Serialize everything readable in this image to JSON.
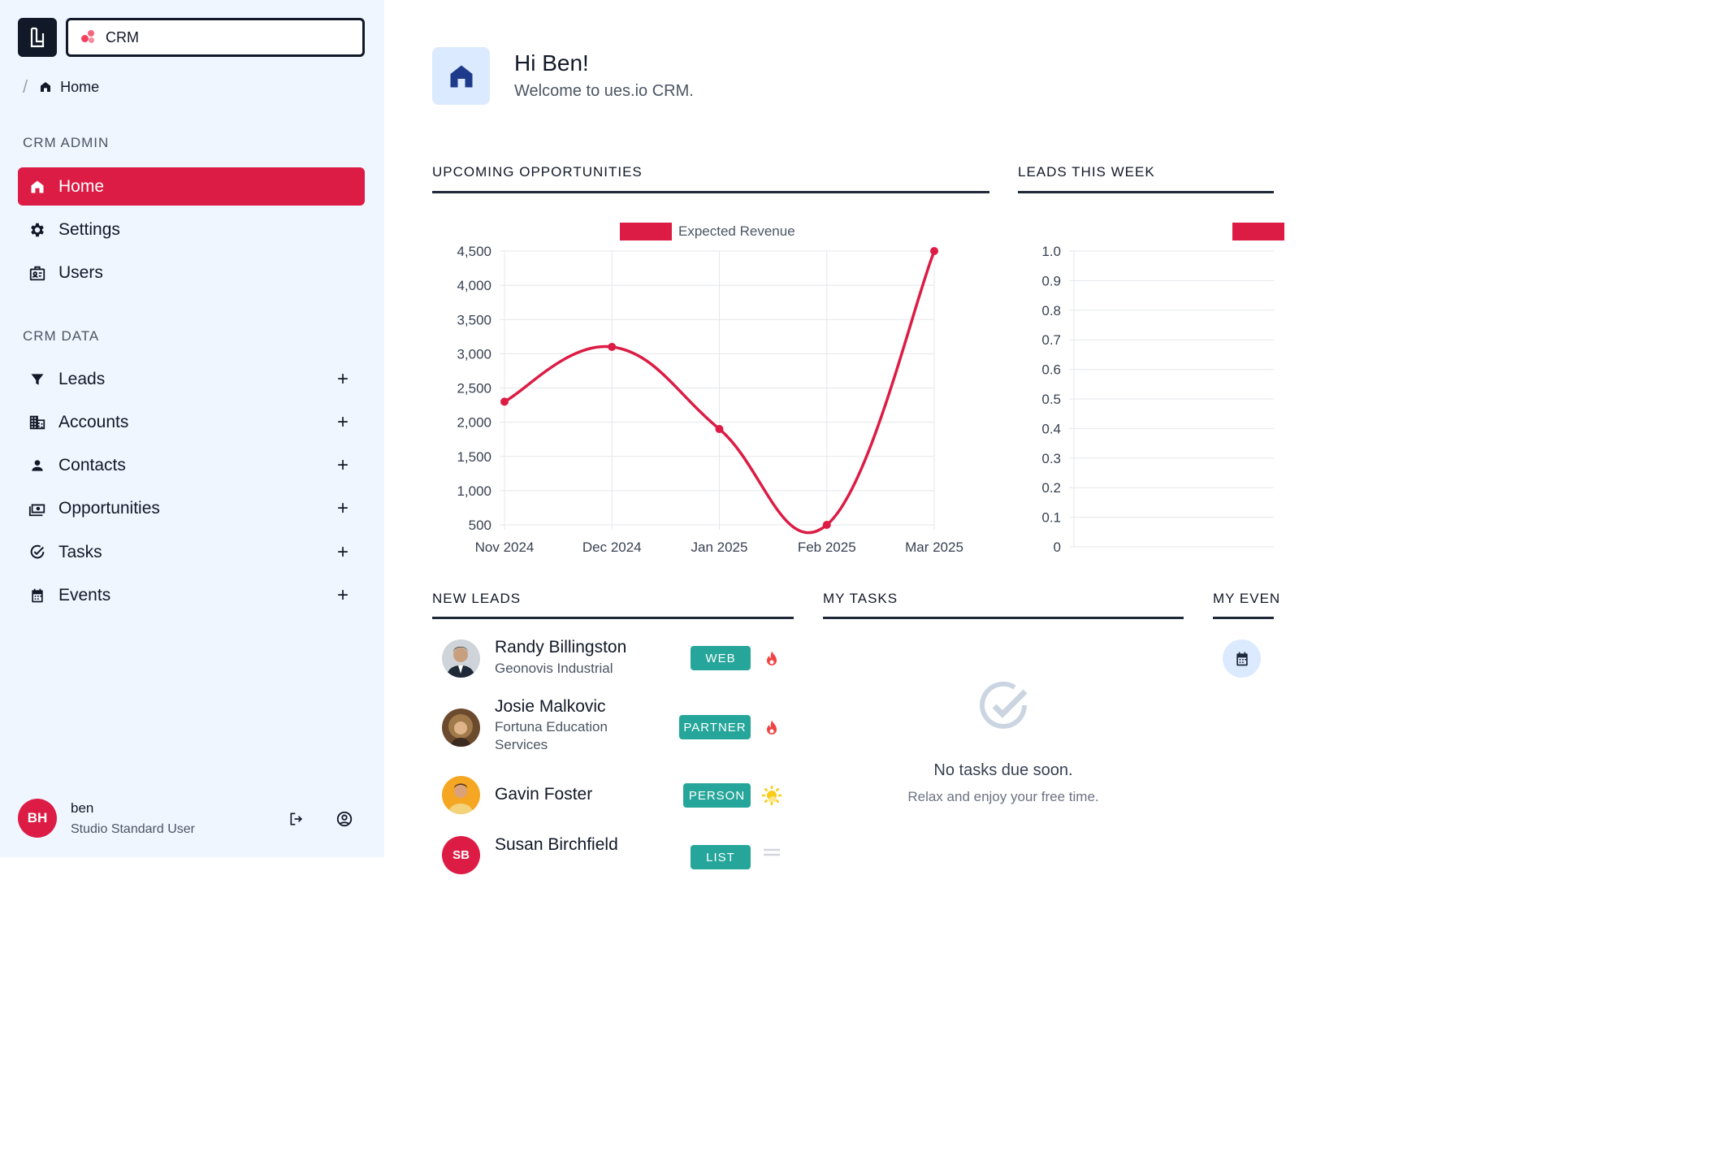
{
  "app": {
    "selector_label": "CRM",
    "breadcrumb": "Home"
  },
  "sidebar": {
    "admin_title": "CRM ADMIN",
    "admin_items": [
      {
        "label": "Home",
        "icon": "home-icon",
        "active": true
      },
      {
        "label": "Settings",
        "icon": "gear-icon"
      },
      {
        "label": "Users",
        "icon": "badge-icon"
      }
    ],
    "data_title": "CRM DATA",
    "data_items": [
      {
        "label": "Leads",
        "icon": "filter-icon"
      },
      {
        "label": "Accounts",
        "icon": "building-icon"
      },
      {
        "label": "Contacts",
        "icon": "person-icon"
      },
      {
        "label": "Opportunities",
        "icon": "money-icon"
      },
      {
        "label": "Tasks",
        "icon": "check-circle-icon"
      },
      {
        "label": "Events",
        "icon": "calendar-icon"
      }
    ],
    "add_symbol": "+"
  },
  "user": {
    "initials": "BH",
    "name": "ben",
    "role": "Studio Standard User"
  },
  "hero": {
    "title": "Hi Ben!",
    "subtitle": "Welcome to ues.io CRM."
  },
  "panels": {
    "opportunities": "UPCOMING OPPORTUNITIES",
    "leads_week": "LEADS THIS WEEK",
    "new_leads": "NEW LEADS",
    "my_tasks": "MY TASKS",
    "my_events": "MY EVEN"
  },
  "chart_data": [
    {
      "type": "line",
      "title": "",
      "legend": [
        "Expected Revenue"
      ],
      "categories": [
        "Nov 2024",
        "Dec 2024",
        "Jan 2025",
        "Feb 2025",
        "Mar 2025"
      ],
      "series": [
        {
          "name": "Expected Revenue",
          "values": [
            2300,
            3100,
            1900,
            500,
            4500
          ],
          "color": "#dc1c44"
        }
      ],
      "ylim": [
        500,
        4500
      ],
      "yticks": [
        "4,500",
        "4,000",
        "3,500",
        "3,000",
        "2,500",
        "2,000",
        "1,500",
        "1,000",
        "500"
      ],
      "grid": true,
      "legend_position": "top"
    },
    {
      "type": "bar",
      "title": "",
      "categories": [],
      "series": [],
      "ylim": [
        0,
        1.0
      ],
      "yticks": [
        "1.0",
        "0.9",
        "0.8",
        "0.7",
        "0.6",
        "0.5",
        "0.4",
        "0.3",
        "0.2",
        "0.1",
        "0"
      ],
      "grid": true,
      "legend_position": "top"
    }
  ],
  "leads": [
    {
      "name": "Randy Billingston",
      "company": "Geonovis Industrial",
      "source": "WEB",
      "temp": "hot"
    },
    {
      "name": "Josie Malkovic",
      "company": "Fortuna Education Services",
      "source": "PARTNER",
      "temp": "hot"
    },
    {
      "name": "Gavin Foster",
      "company": "",
      "source": "PERSON",
      "temp": "warm"
    },
    {
      "name": "Susan Birchfield",
      "company": "",
      "source": "LIST",
      "temp": "cold",
      "initials": "SB"
    }
  ],
  "tasks": {
    "empty_title": "No tasks due soon.",
    "empty_subtitle": "Relax and enjoy your free time."
  }
}
